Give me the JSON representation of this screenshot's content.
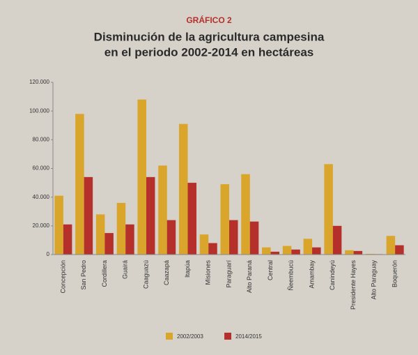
{
  "chart_data": {
    "type": "bar",
    "label": "GRÁFICO 2",
    "title": [
      "Disminución de la agricultura campesina",
      "en el periodo 2002-2014 en hectáreas"
    ],
    "categories": [
      "Concepción",
      "San Pedro",
      "Cordillera",
      "Guairá",
      "Caaguazú",
      "Caazapá",
      "Itapúa",
      "Misiones",
      "Paraguarí",
      "Alto Paraná",
      "Central",
      "Ñeembucú",
      "Amambay",
      "Canindeyú",
      "Presidente Hayes",
      "Alto Paraguay",
      "Boquerón"
    ],
    "series": [
      {
        "name": "2002/2003",
        "color": "#d9a52a",
        "values": [
          41000,
          98000,
          28000,
          36000,
          108000,
          62000,
          91000,
          14000,
          49000,
          56000,
          5000,
          6000,
          11000,
          63000,
          3000,
          500,
          13000
        ]
      },
      {
        "name": "2014/2015",
        "color": "#b5302a",
        "values": [
          21000,
          54000,
          15000,
          21000,
          54000,
          24000,
          50000,
          8000,
          24000,
          23000,
          2000,
          3500,
          5000,
          20000,
          2500,
          300,
          6500
        ]
      }
    ],
    "ylim": [
      0,
      120000
    ],
    "yticks": [
      0,
      {
        "value": 20000,
        "label": "20.000"
      },
      {
        "value": 40000,
        "label": "40.000"
      },
      {
        "value": 60000,
        "label": "60.000"
      },
      {
        "value": 80000,
        "label": "80.000"
      },
      {
        "value": 100000,
        "label": "100.000"
      },
      {
        "value": 120000,
        "label": "120.000"
      }
    ]
  }
}
